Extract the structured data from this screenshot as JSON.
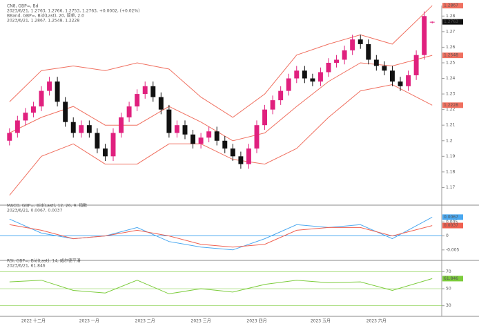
{
  "chart_data": [
    {
      "type": "candlestick",
      "header": [
        "CN8, GBP=, Bd",
        "2023/6/21, 1.2763, 1.2766, 1.2753, 1.2763, +0.0002, (+0.02%)",
        "BBand, GBP=, Bid(Last), 20, 简单, 2.0",
        "2023/6/21, 1.2867, 1.2548, 1.2228"
      ],
      "header_colors": [
        "#222222",
        "#2a3cc8",
        "#e03030",
        "#e03030"
      ],
      "categories": [
        null,
        null,
        null,
        "2022 十二月",
        null,
        null,
        null,
        null,
        null,
        null,
        "2023 一月",
        null,
        null,
        null,
        null,
        null,
        null,
        "2023 二月",
        null,
        null,
        null,
        null,
        null,
        null,
        "2023 三月",
        null,
        null,
        null,
        null,
        null,
        null,
        "2023 四月",
        null,
        null,
        null,
        null,
        null,
        null,
        null,
        "2023 五月",
        null,
        null,
        null,
        null,
        null,
        null,
        "2023 六月",
        null,
        null,
        null,
        null,
        null,
        null,
        null
      ],
      "open": [
        1.2,
        1.205,
        1.213,
        1.218,
        1.222,
        1.232,
        1.238,
        1.225,
        1.212,
        1.205,
        1.21,
        1.205,
        1.195,
        1.19,
        1.205,
        1.215,
        1.222,
        1.23,
        1.235,
        1.228,
        1.22,
        1.205,
        1.21,
        1.204,
        1.198,
        1.202,
        1.206,
        1.2,
        1.195,
        1.19,
        1.185,
        1.195,
        1.21,
        1.22,
        1.226,
        1.232,
        1.24,
        1.245,
        1.24,
        1.238,
        1.244,
        1.25,
        1.252,
        1.258,
        1.265,
        1.262,
        1.252,
        1.248,
        1.245,
        1.238,
        1.235,
        1.242,
        1.255,
        1.2763
      ],
      "high": [
        1.208,
        1.216,
        1.221,
        1.225,
        1.235,
        1.241,
        1.241,
        1.228,
        1.215,
        1.213,
        1.213,
        1.208,
        1.198,
        1.208,
        1.218,
        1.225,
        1.233,
        1.238,
        1.238,
        1.231,
        1.223,
        1.213,
        1.213,
        1.207,
        1.205,
        1.209,
        1.209,
        1.203,
        1.198,
        1.193,
        1.198,
        1.213,
        1.223,
        1.229,
        1.235,
        1.243,
        1.248,
        1.248,
        1.243,
        1.247,
        1.253,
        1.255,
        1.261,
        1.268,
        1.268,
        1.265,
        1.255,
        1.251,
        1.248,
        1.241,
        1.245,
        1.258,
        1.283,
        1.2766
      ],
      "low": [
        1.197,
        1.202,
        1.21,
        1.215,
        1.219,
        1.229,
        1.222,
        1.209,
        1.202,
        1.202,
        1.202,
        1.192,
        1.187,
        1.187,
        1.202,
        1.212,
        1.219,
        1.227,
        1.225,
        1.217,
        1.202,
        1.202,
        1.201,
        1.195,
        1.195,
        1.199,
        1.197,
        1.192,
        1.187,
        1.182,
        1.182,
        1.192,
        1.207,
        1.217,
        1.223,
        1.229,
        1.237,
        1.237,
        1.235,
        1.235,
        1.241,
        1.247,
        1.249,
        1.255,
        1.259,
        1.249,
        1.245,
        1.242,
        1.235,
        1.232,
        1.232,
        1.239,
        1.252,
        1.2753
      ],
      "close": [
        1.205,
        1.213,
        1.218,
        1.222,
        1.232,
        1.238,
        1.225,
        1.212,
        1.205,
        1.21,
        1.205,
        1.195,
        1.19,
        1.205,
        1.215,
        1.222,
        1.23,
        1.235,
        1.228,
        1.22,
        1.205,
        1.21,
        1.204,
        1.198,
        1.202,
        1.206,
        1.2,
        1.195,
        1.19,
        1.185,
        1.195,
        1.21,
        1.22,
        1.226,
        1.232,
        1.24,
        1.245,
        1.24,
        1.238,
        1.244,
        1.25,
        1.252,
        1.258,
        1.265,
        1.262,
        1.252,
        1.248,
        1.245,
        1.238,
        1.235,
        1.242,
        1.255,
        1.28,
        1.2763
      ],
      "up_color": "#e0207e",
      "down_color": "#111111",
      "x": [
        0,
        4,
        8,
        12,
        16,
        20,
        24,
        28,
        32,
        36,
        40,
        44,
        48,
        53
      ],
      "series": [
        {
          "color": "#f07060",
          "values": [
            1.225,
            1.245,
            1.248,
            1.245,
            1.25,
            1.246,
            1.228,
            1.215,
            1.23,
            1.255,
            1.262,
            1.268,
            1.262,
            1.2867
          ]
        },
        {
          "color": "#f07060",
          "values": [
            1.205,
            1.215,
            1.222,
            1.21,
            1.21,
            1.222,
            1.212,
            1.2,
            1.205,
            1.222,
            1.238,
            1.25,
            1.248,
            1.2548
          ]
        },
        {
          "color": "#f07060",
          "values": [
            1.165,
            1.19,
            1.198,
            1.185,
            1.185,
            1.198,
            1.198,
            1.188,
            1.185,
            1.195,
            1.215,
            1.232,
            1.236,
            1.2228
          ]
        }
      ],
      "ylim": [
        1.16,
        1.285
      ],
      "yticks": [
        1.17,
        1.18,
        1.19,
        1.2,
        1.21,
        1.22,
        1.23,
        1.24,
        1.25,
        1.26,
        1.27,
        1.28
      ]
    },
    {
      "type": "line",
      "header": [
        "MACD, GBP=, Bid(Last), 12, 26, 9, 指数",
        "2023/6/21, 0.0067, 0.0037"
      ],
      "header_colors": [
        "#222222",
        "#2a3cc8"
      ],
      "x": [
        0,
        4,
        8,
        12,
        16,
        20,
        24,
        28,
        32,
        36,
        40,
        44,
        48,
        53
      ],
      "series": [
        {
          "color": "#4aa8f0",
          "values": [
            0.006,
            0.001,
            -0.001,
            0.0,
            0.003,
            -0.002,
            -0.004,
            -0.005,
            -0.001,
            0.004,
            0.003,
            0.004,
            -0.001,
            0.0067
          ]
        },
        {
          "color": "#f06050",
          "values": [
            0.004,
            0.002,
            -0.001,
            0.0,
            0.002,
            0.0,
            -0.003,
            -0.004,
            -0.003,
            0.002,
            0.003,
            0.003,
            0.0,
            0.0037
          ]
        }
      ],
      "ylim": [
        -0.008,
        0.01
      ],
      "yticks": [
        -0.005,
        0,
        0.005
      ]
    },
    {
      "type": "line",
      "header": [
        "RSI, GBP=, Bid(Last), 14, 威尔德平滑",
        "2023/6/21, 61.846"
      ],
      "header_colors": [
        "#222222",
        "#2a9a2a"
      ],
      "x": [
        0,
        4,
        8,
        12,
        16,
        20,
        24,
        28,
        32,
        36,
        40,
        44,
        48,
        53
      ],
      "series": [
        {
          "color": "#7ccc3c",
          "values": [
            58,
            60,
            48,
            45,
            60,
            44,
            50,
            46,
            55,
            60,
            57,
            58,
            48,
            61.846
          ]
        }
      ],
      "ylim": [
        20,
        80
      ],
      "yticks": [
        30,
        50,
        70
      ]
    }
  ]
}
